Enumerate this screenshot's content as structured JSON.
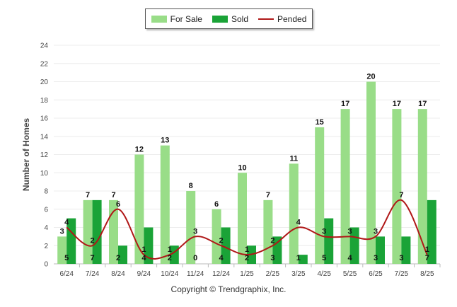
{
  "chart_data": {
    "type": "bar",
    "title": "",
    "xlabel": "",
    "ylabel": "Number of Homes",
    "ylim": [
      0,
      24
    ],
    "yticks": [
      "0",
      "2",
      "4",
      "6",
      "8",
      "10",
      "12",
      "14",
      "16",
      "18",
      "20",
      "22",
      "24"
    ],
    "categories": [
      "6/24",
      "7/24",
      "8/24",
      "9/24",
      "10/24",
      "11/24",
      "12/24",
      "1/25",
      "2/25",
      "3/25",
      "4/25",
      "5/25",
      "6/25",
      "7/25",
      "8/25"
    ],
    "series": [
      {
        "name": "For Sale",
        "kind": "bar",
        "color": "#99dd88",
        "values": [
          3,
          7,
          7,
          12,
          13,
          8,
          6,
          10,
          7,
          11,
          15,
          17,
          20,
          17,
          17
        ]
      },
      {
        "name": "Sold",
        "kind": "bar",
        "color": "#1aa337",
        "values": [
          5,
          7,
          2,
          4,
          2,
          0,
          4,
          2,
          3,
          1,
          5,
          4,
          3,
          3,
          7
        ]
      },
      {
        "name": "Pended",
        "kind": "line",
        "color": "#b01818",
        "values": [
          4,
          2,
          6,
          1,
          1,
          3,
          2,
          1,
          2,
          4,
          3,
          3,
          3,
          7,
          1
        ]
      }
    ],
    "grid": true,
    "legend_position": "top-center"
  },
  "footer": {
    "copyright": "Copyright © Trendgraphix, Inc."
  }
}
